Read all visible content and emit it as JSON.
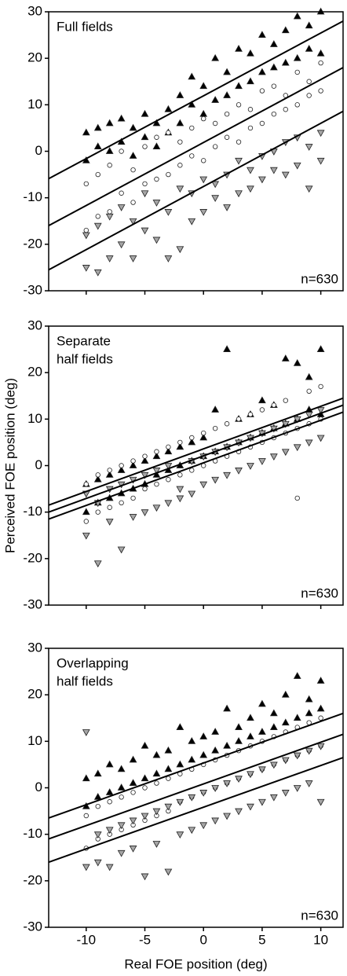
{
  "chart_data": [
    {
      "type": "scatter",
      "title_lines": [
        "Full fields"
      ],
      "annotation": "n=630",
      "xlim": [
        -13.2,
        11.9
      ],
      "ylim": [
        -30,
        30
      ],
      "xticks": [
        -10,
        -5,
        0,
        5,
        10
      ],
      "yticks": [
        -30,
        -20,
        -10,
        0,
        10,
        20,
        30
      ],
      "series": [
        {
          "marker": "triangle-up",
          "color": "#000000",
          "x": [
            -10,
            -10,
            -9,
            -9,
            -8,
            -8,
            -7,
            -7,
            -6,
            -6,
            -5,
            -5,
            -4,
            -4,
            -3,
            -3,
            -2,
            -2,
            -1,
            -1,
            0,
            0,
            1,
            1,
            2,
            2,
            3,
            3,
            4,
            4,
            5,
            5,
            6,
            6,
            7,
            7,
            8,
            8,
            9,
            9,
            10,
            10
          ],
          "y": [
            4,
            -2,
            5,
            1,
            6,
            0,
            7,
            2,
            5,
            -1,
            8,
            3,
            6,
            1,
            9,
            4,
            12,
            6,
            16,
            10,
            14,
            8,
            20,
            11,
            17,
            12,
            22,
            14,
            21,
            15,
            25,
            17,
            23,
            18,
            26,
            19,
            29,
            20,
            27,
            22,
            30,
            21
          ]
        },
        {
          "marker": "circle",
          "color": "#ffffff",
          "x": [
            -10,
            -10,
            -9,
            -9,
            -8,
            -8,
            -7,
            -7,
            -6,
            -6,
            -5,
            -5,
            -4,
            -4,
            -3,
            -3,
            -2,
            -2,
            -1,
            -1,
            0,
            0,
            1,
            1,
            2,
            2,
            3,
            3,
            4,
            4,
            5,
            5,
            6,
            6,
            7,
            7,
            8,
            8,
            9,
            9,
            10,
            10
          ],
          "y": [
            -7,
            -17,
            -5,
            -14,
            -3,
            -13,
            0,
            -9,
            -4,
            -11,
            1,
            -7,
            3,
            -6,
            4,
            -5,
            2,
            -3,
            5,
            -1,
            7,
            -2,
            6,
            1,
            8,
            3,
            10,
            2,
            9,
            5,
            13,
            6,
            14,
            8,
            12,
            9,
            17,
            10,
            15,
            12,
            19,
            13
          ]
        },
        {
          "marker": "triangle-down",
          "color": "#a6a6a6",
          "x": [
            -10,
            -10,
            -9,
            -9,
            -8,
            -8,
            -7,
            -7,
            -6,
            -6,
            -5,
            -5,
            -4,
            -4,
            -3,
            -3,
            -2,
            -2,
            -1,
            -1,
            0,
            0,
            1,
            1,
            2,
            2,
            3,
            3,
            4,
            4,
            5,
            5,
            6,
            6,
            7,
            7,
            8,
            8,
            9,
            9,
            10,
            10
          ],
          "y": [
            -18,
            -25,
            -16,
            -26,
            -14,
            -23,
            -12,
            -20,
            -15,
            -23,
            -9,
            -17,
            -11,
            -19,
            -13,
            -23,
            -8,
            -21,
            -9,
            -15,
            -6,
            -13,
            -7,
            -10,
            -5,
            -12,
            -2,
            -9,
            -4,
            -8,
            -1,
            -6,
            0,
            -4,
            2,
            -5,
            3,
            -3,
            1,
            -8,
            4,
            -2
          ]
        }
      ],
      "lines": [
        {
          "x": [
            -13.2,
            11.9
          ],
          "y": [
            -5.9,
            28
          ]
        },
        {
          "x": [
            -13.2,
            11.9
          ],
          "y": [
            -16,
            18
          ]
        },
        {
          "x": [
            -13.2,
            11.9
          ],
          "y": [
            -25.5,
            8.6
          ]
        }
      ]
    },
    {
      "type": "scatter",
      "title_lines": [
        "Separate",
        "half fields"
      ],
      "annotation": "n=630",
      "ylabel": "Perceived FOE position (deg)",
      "xlim": [
        -13.2,
        11.9
      ],
      "ylim": [
        -30,
        30
      ],
      "xticks": [
        -10,
        -5,
        0,
        5,
        10
      ],
      "yticks": [
        -30,
        -20,
        -10,
        0,
        10,
        20,
        30
      ],
      "series": [
        {
          "marker": "triangle-up",
          "color": "#000000",
          "x": [
            -10,
            -10,
            -9,
            -9,
            -8,
            -8,
            -7,
            -7,
            -6,
            -6,
            -5,
            -5,
            -4,
            -4,
            -3,
            -3,
            -2,
            -2,
            -1,
            -1,
            0,
            0,
            1,
            1,
            2,
            2,
            3,
            3,
            4,
            4,
            5,
            5,
            6,
            6,
            7,
            7,
            8,
            8,
            9,
            9,
            10,
            10
          ],
          "y": [
            -4,
            -10,
            -3,
            -8,
            -2,
            -7,
            -1,
            -6,
            0,
            -5,
            1,
            -4,
            2,
            -2,
            3,
            -1,
            4,
            0,
            5,
            1,
            6,
            2,
            12,
            3,
            25,
            4,
            10,
            5,
            11,
            6,
            14,
            7,
            13,
            8,
            23,
            9,
            22,
            10,
            19,
            12,
            25,
            11
          ]
        },
        {
          "marker": "circle",
          "color": "#ffffff",
          "x": [
            -10,
            -10,
            -9,
            -9,
            -8,
            -8,
            -7,
            -7,
            -6,
            -6,
            -5,
            -5,
            -4,
            -4,
            -3,
            -3,
            -2,
            -2,
            -1,
            -1,
            0,
            0,
            1,
            1,
            2,
            2,
            3,
            3,
            4,
            4,
            5,
            5,
            6,
            6,
            7,
            7,
            8,
            8,
            9,
            9,
            10,
            10
          ],
          "y": [
            -4,
            -12,
            -2,
            -10,
            -1,
            -9,
            0,
            -8,
            1,
            -7,
            2,
            -5,
            3,
            -4,
            4,
            -3,
            5,
            -2,
            6,
            -1,
            7,
            0,
            8,
            1,
            9,
            2,
            10,
            3,
            11,
            4,
            12,
            5,
            13,
            6,
            14,
            7,
            -7,
            8,
            16,
            9,
            17,
            10
          ]
        },
        {
          "marker": "triangle-down",
          "color": "#a6a6a6",
          "x": [
            -10,
            -10,
            -9,
            -9,
            -8,
            -8,
            -7,
            -7,
            -6,
            -6,
            -5,
            -5,
            -4,
            -4,
            -3,
            -3,
            -2,
            -2,
            -1,
            -1,
            0,
            0,
            1,
            1,
            2,
            2,
            3,
            3,
            4,
            4,
            5,
            5,
            6,
            6,
            7,
            7,
            8,
            8,
            9,
            9,
            10,
            10
          ],
          "y": [
            -6,
            -15,
            -8,
            -21,
            -5,
            -12,
            -4,
            -18,
            -3,
            -11,
            -2,
            -10,
            -1,
            -9,
            0,
            -8,
            -7,
            -5,
            1,
            -6,
            2,
            -4,
            3,
            -3,
            4,
            -2,
            5,
            -1,
            6,
            0,
            7,
            1,
            8,
            2,
            9,
            3,
            10,
            4,
            11,
            5,
            12,
            6
          ]
        }
      ],
      "lines": [
        {
          "x": [
            -13.2,
            11.9
          ],
          "y": [
            -8.5,
            14.5
          ]
        },
        {
          "x": [
            -13.2,
            11.9
          ],
          "y": [
            -10,
            13
          ]
        },
        {
          "x": [
            -13.2,
            11.9
          ],
          "y": [
            -11.5,
            11.5
          ]
        }
      ]
    },
    {
      "type": "scatter",
      "title_lines": [
        "Overlapping",
        "half fields"
      ],
      "annotation": "n=630",
      "xlabel": "Real FOE position (deg)",
      "xtick_labels": true,
      "xlim": [
        -13.2,
        11.9
      ],
      "ylim": [
        -30,
        30
      ],
      "xticks": [
        -10,
        -5,
        0,
        5,
        10
      ],
      "yticks": [
        -30,
        -20,
        -10,
        0,
        10,
        20,
        30
      ],
      "series": [
        {
          "marker": "triangle-up",
          "color": "#000000",
          "x": [
            -10,
            -10,
            -9,
            -9,
            -8,
            -8,
            -7,
            -7,
            -6,
            -6,
            -5,
            -5,
            -4,
            -4,
            -3,
            -3,
            -2,
            -2,
            -1,
            -1,
            0,
            0,
            1,
            1,
            2,
            2,
            3,
            3,
            4,
            4,
            5,
            5,
            6,
            6,
            7,
            7,
            8,
            8,
            9,
            9,
            10,
            10
          ],
          "y": [
            2,
            -4,
            3,
            -2,
            5,
            -1,
            4,
            0,
            6,
            1,
            9,
            2,
            7,
            3,
            8,
            4,
            13,
            5,
            10,
            6,
            11,
            7,
            12,
            8,
            17,
            9,
            13,
            10,
            15,
            11,
            18,
            12,
            16,
            13,
            20,
            14,
            24,
            15,
            19,
            16,
            23,
            17
          ]
        },
        {
          "marker": "circle",
          "color": "#ffffff",
          "x": [
            -10,
            -10,
            -9,
            -9,
            -8,
            -8,
            -7,
            -7,
            -6,
            -6,
            -5,
            -5,
            -4,
            -4,
            -3,
            -3,
            -2,
            -2,
            -1,
            -1,
            0,
            0,
            1,
            1,
            2,
            2,
            3,
            3,
            4,
            4,
            5,
            5,
            6,
            6,
            7,
            7,
            8,
            8,
            9,
            9,
            10,
            10
          ],
          "y": [
            -6,
            -13,
            -4,
            -11,
            -3,
            -10,
            -2,
            -9,
            -1,
            -8,
            0,
            -7,
            1,
            -6,
            2,
            -5,
            3,
            -3,
            4,
            -2,
            5,
            -1,
            6,
            0,
            7,
            1,
            8,
            2,
            9,
            3,
            10,
            4,
            11,
            5,
            12,
            6,
            13,
            7,
            14,
            8,
            15,
            9
          ]
        },
        {
          "marker": "triangle-down",
          "color": "#a6a6a6",
          "x": [
            -10,
            -10,
            -9,
            -9,
            -8,
            -8,
            -7,
            -7,
            -6,
            -6,
            -5,
            -5,
            -4,
            -4,
            -3,
            -3,
            -2,
            -2,
            -1,
            -1,
            0,
            0,
            1,
            1,
            2,
            2,
            3,
            3,
            4,
            4,
            5,
            5,
            6,
            6,
            7,
            7,
            8,
            8,
            9,
            9,
            10,
            10
          ],
          "y": [
            12,
            -17,
            -10,
            -16,
            -9,
            -17,
            -8,
            -14,
            -7,
            -13,
            -6,
            -19,
            -5,
            -12,
            -4,
            -18,
            -3,
            -10,
            -2,
            -9,
            -1,
            -8,
            0,
            -7,
            1,
            -6,
            2,
            -5,
            3,
            -4,
            4,
            -3,
            5,
            -2,
            6,
            -1,
            7,
            0,
            8,
            1,
            9,
            -3
          ]
        }
      ],
      "lines": [
        {
          "x": [
            -13.2,
            11.9
          ],
          "y": [
            -6.5,
            16
          ]
        },
        {
          "x": [
            -13.2,
            11.9
          ],
          "y": [
            -11,
            11.5
          ]
        },
        {
          "x": [
            -13.2,
            11.9
          ],
          "y": [
            -16,
            6.5
          ]
        }
      ]
    }
  ]
}
